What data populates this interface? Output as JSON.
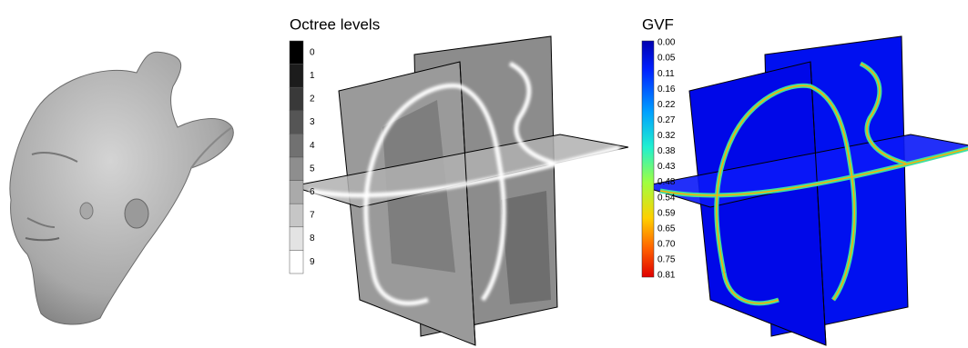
{
  "octree_panel": {
    "title": "Octree levels",
    "levels": [
      "0",
      "1",
      "2",
      "3",
      "4",
      "5",
      "6",
      "7",
      "8",
      "9"
    ]
  },
  "gvf_panel": {
    "title": "GVF",
    "labels": [
      "0.00",
      "0.05",
      "0.11",
      "0.16",
      "0.22",
      "0.27",
      "0.32",
      "0.38",
      "0.43",
      "0.48",
      "0.54",
      "0.59",
      "0.65",
      "0.70",
      "0.75",
      "0.81"
    ]
  }
}
